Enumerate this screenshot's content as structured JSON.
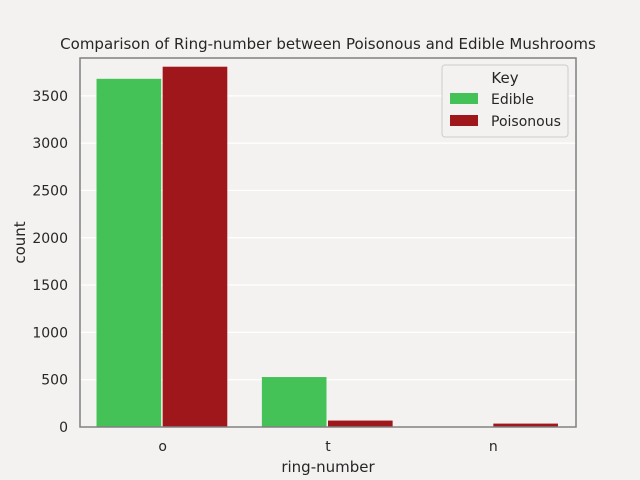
{
  "chart_data": {
    "type": "bar",
    "title": "Comparison of Ring-number between Poisonous and Edible Mushrooms",
    "xlabel": "ring-number",
    "ylabel": "count",
    "categories": [
      "o",
      "t",
      "n"
    ],
    "series": [
      {
        "name": "Edible",
        "color": "#44c157",
        "values": [
          3680,
          528,
          0
        ]
      },
      {
        "name": "Poisonous",
        "color": "#a0171b",
        "values": [
          3808,
          68,
          36
        ]
      }
    ],
    "ylim": [
      0,
      3900
    ],
    "yticks": [
      0,
      500,
      1000,
      1500,
      2000,
      2500,
      3000,
      3500
    ],
    "grid": true,
    "legend": {
      "title": "Key",
      "placement": "top-right"
    }
  }
}
